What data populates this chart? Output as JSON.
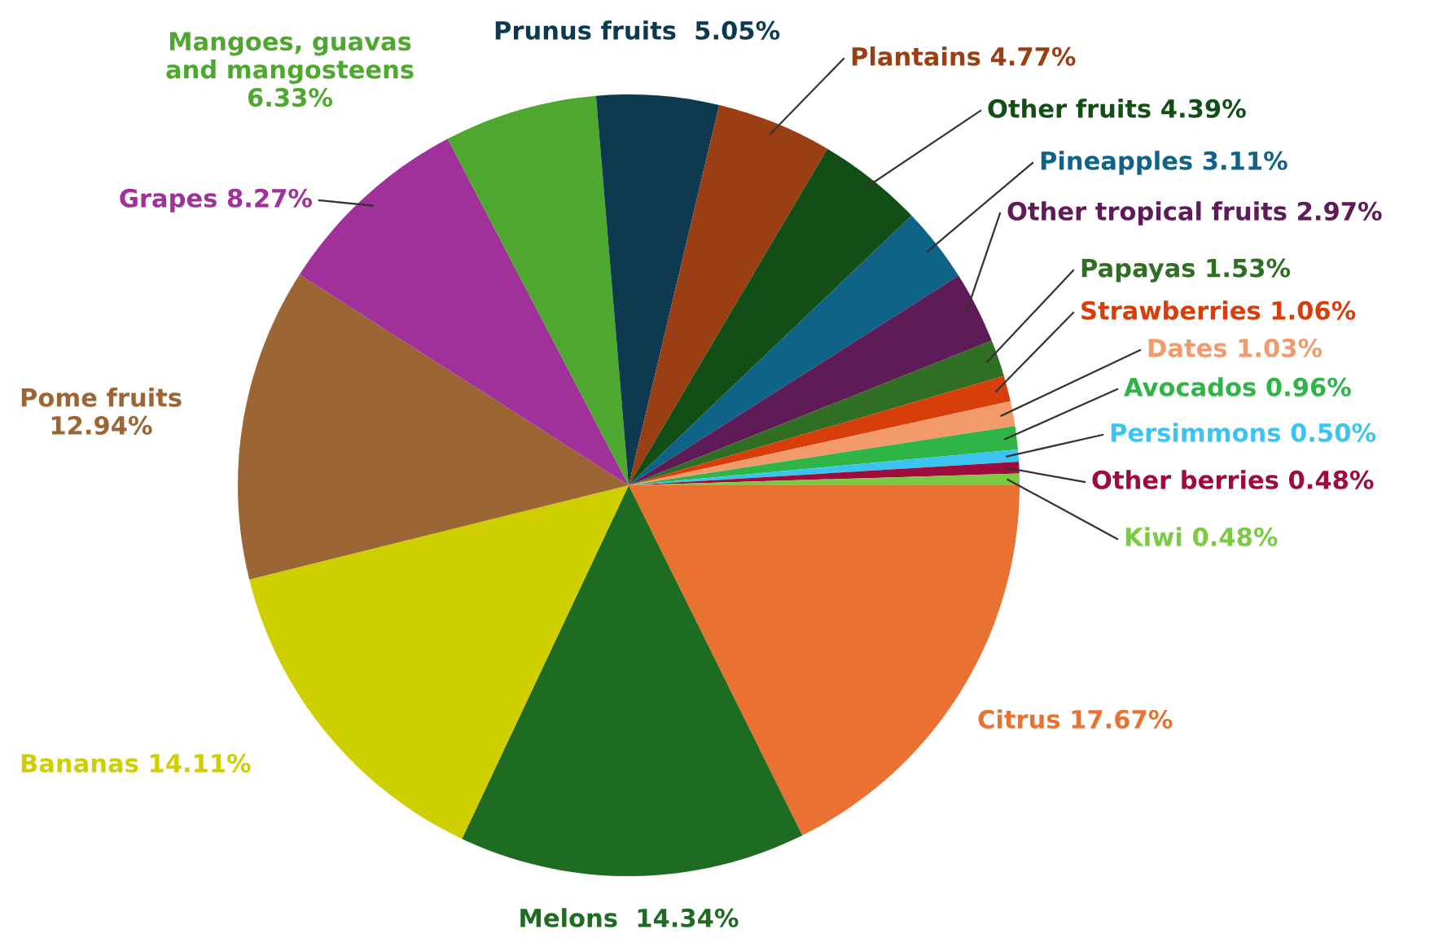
{
  "chart_data": {
    "type": "pie",
    "categories": [
      "Citrus",
      "Melons",
      "Bananas",
      "Pome fruits",
      "Grapes",
      "Mangoes, guavas\nand mangosteens",
      "Prunus fruits",
      "Plantains",
      "Other fruits",
      "Pineapples",
      "Other tropical fruits",
      "Papayas",
      "Strawberries",
      "Dates",
      "Avocados",
      "Persimmons",
      "Other berries",
      "Kiwi"
    ],
    "values": [
      17.67,
      14.34,
      14.11,
      12.94,
      8.27,
      6.33,
      5.05,
      4.77,
      4.39,
      3.11,
      2.97,
      1.53,
      1.06,
      1.03,
      0.96,
      0.5,
      0.48,
      0.48
    ],
    "value_labels": [
      "17.67%",
      "14.34%",
      "14.11%",
      "12.94%",
      "8.27%",
      "6.33%",
      "5.05%",
      "4.77%",
      "4.39%",
      "3.11%",
      "2.97%",
      "1.53%",
      "1.06%",
      "1.03%",
      "0.96%",
      "0.50%",
      "0.48%",
      "0.48%"
    ],
    "colors": [
      "#e97132",
      "#1e6b22",
      "#cfcf00",
      "#9b6633",
      "#a0309a",
      "#4ea72e",
      "#0e3a50",
      "#9a3f14",
      "#134e16",
      "#0f6387",
      "#5f1b57",
      "#2f6e23",
      "#d83e0a",
      "#f29a6a",
      "#2fb547",
      "#3bc4f0",
      "#9e0b3d",
      "#7acb41"
    ]
  }
}
